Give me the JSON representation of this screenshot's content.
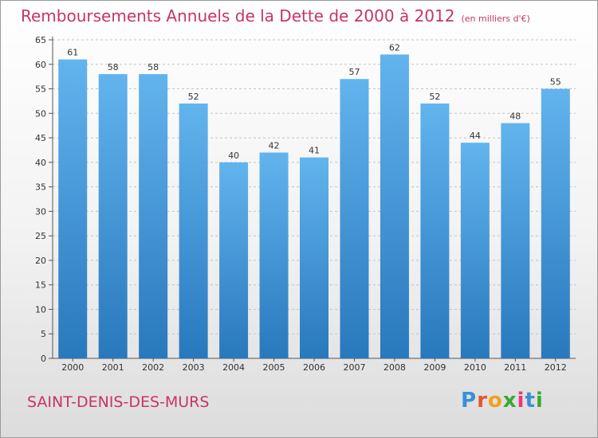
{
  "header": {
    "title": "Remboursements Annuels de la Dette de 2000 à 2012",
    "unit": "(en milliers d'€)"
  },
  "commune": "SAINT-DENIS-DES-MURS",
  "logo": {
    "text": "Proxiti",
    "letter_colors": [
      "#3a8fd8",
      "#e8542c",
      "#f0a020",
      "#39a935",
      "#e83a78",
      "#3a8fd8",
      "#39a935"
    ]
  },
  "colors": {
    "bar_top": "#62b4ee",
    "bar_bottom": "#2878bd",
    "title": "#c8336a"
  },
  "chart_data": {
    "type": "bar",
    "categories": [
      "2000",
      "2001",
      "2002",
      "2003",
      "2004",
      "2005",
      "2006",
      "2007",
      "2008",
      "2009",
      "2010",
      "2011",
      "2012"
    ],
    "values": [
      61,
      58,
      58,
      52,
      40,
      42,
      41,
      57,
      62,
      52,
      44,
      48,
      55
    ],
    "title": "Remboursements Annuels de la Dette de 2000 à 2012",
    "xlabel": "",
    "ylabel": "",
    "ylim": [
      0,
      65
    ],
    "yticks": [
      0,
      5,
      10,
      15,
      20,
      25,
      30,
      35,
      40,
      45,
      50,
      55,
      60,
      65
    ],
    "grid": true,
    "data_labels": true
  }
}
